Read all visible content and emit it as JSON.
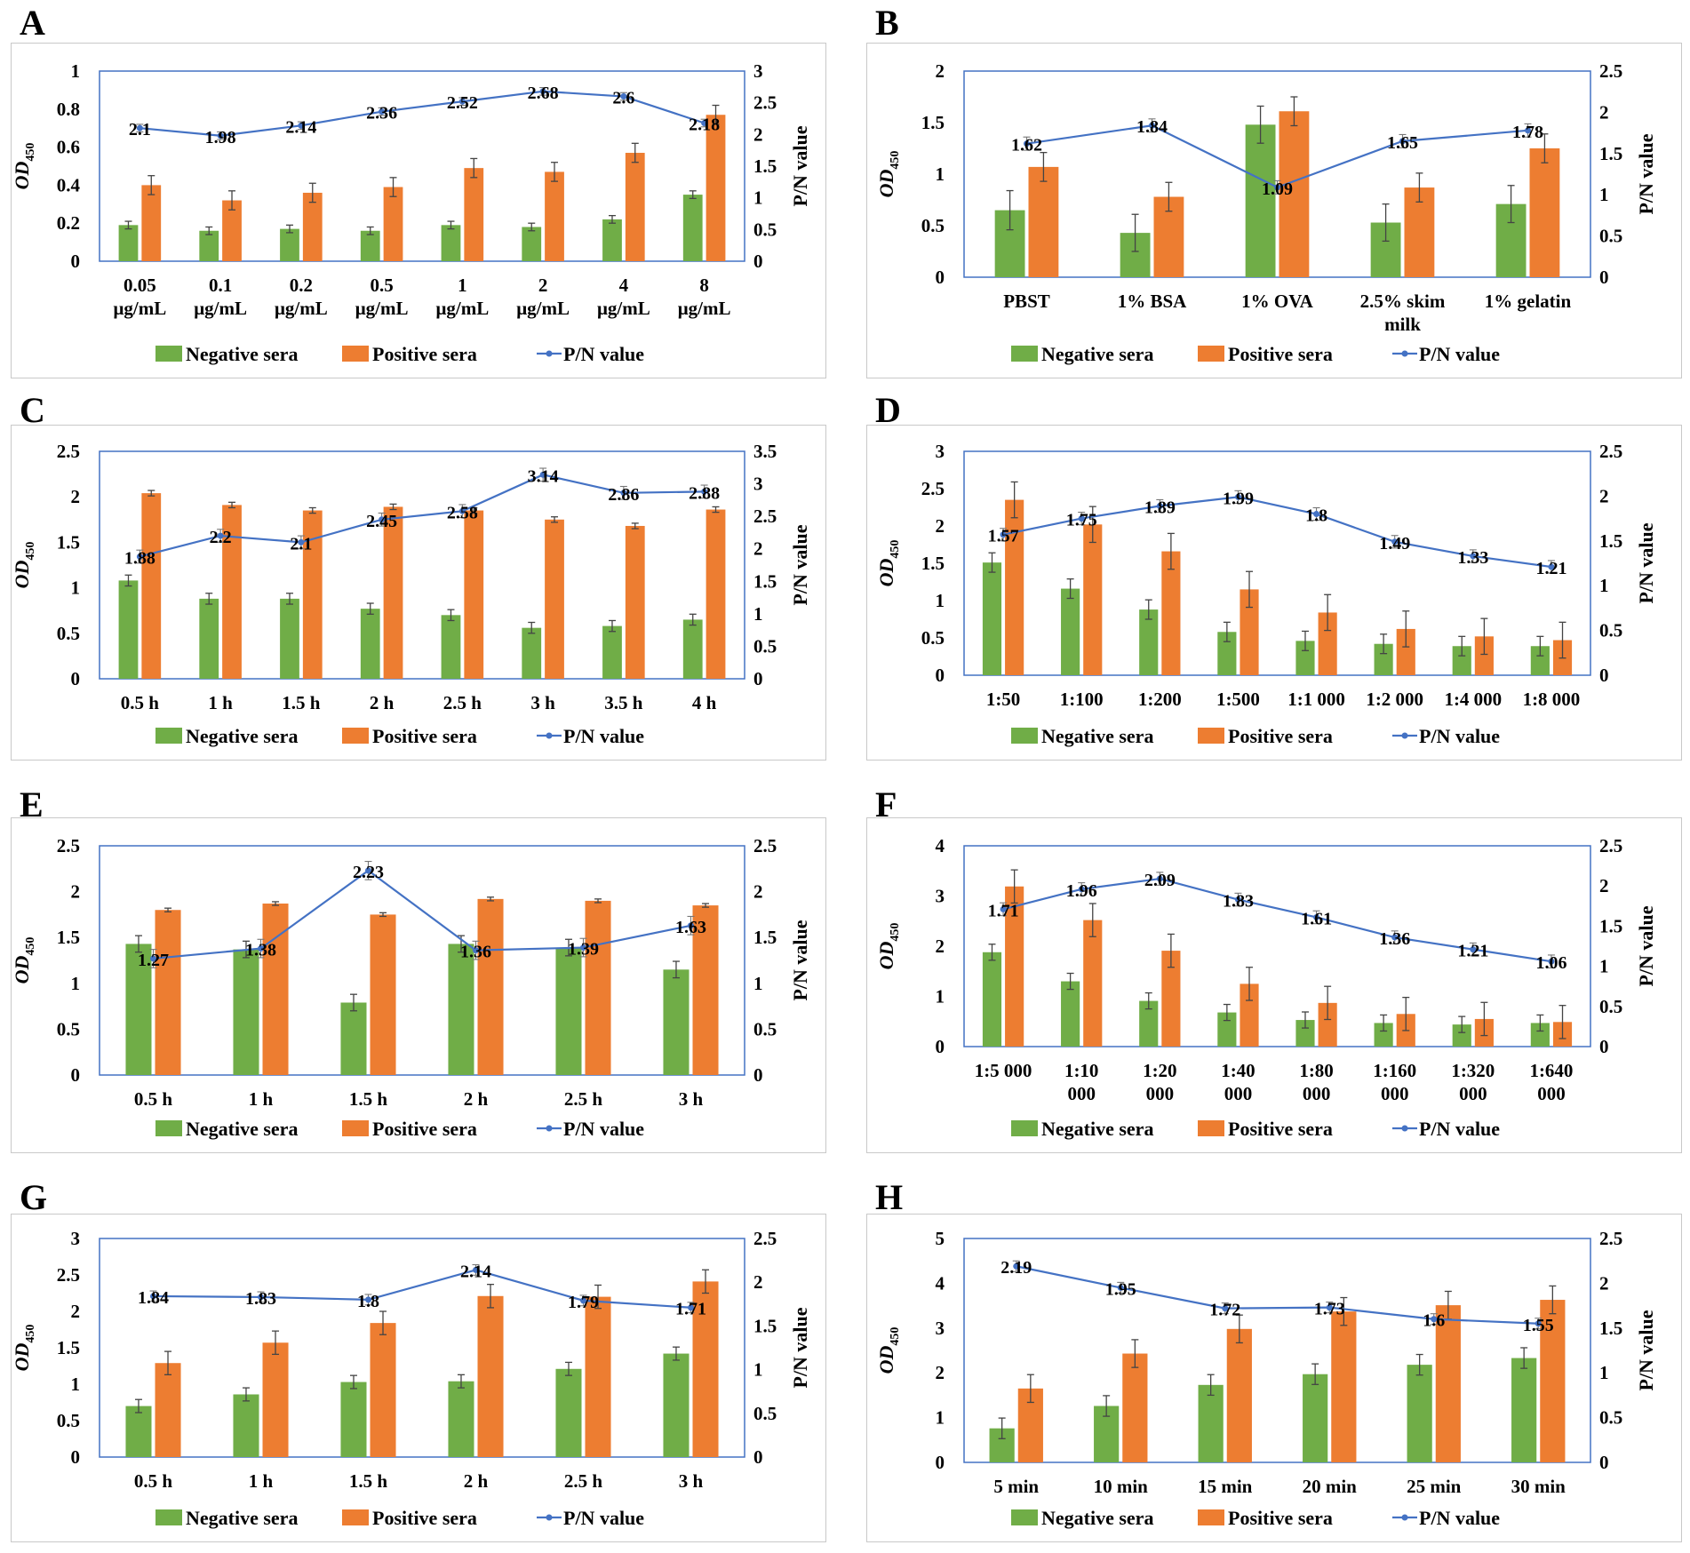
{
  "legend": {
    "negative": "Negative sera",
    "positive": "Positive sera",
    "pn": "P/N value"
  },
  "axis_labels": {
    "left_main": "OD",
    "left_sub": "450",
    "right": "P/N value"
  },
  "colors": {
    "negative": "#70ad47",
    "positive": "#ed7d31",
    "pn": "#4472c4",
    "frame": "#c9c9c9",
    "plot_border": "#4472c4",
    "error": "#444444"
  },
  "chart_data": [
    {
      "letter": "A",
      "type": "bar+line",
      "ylim": [
        0,
        1
      ],
      "yticks": [
        "0",
        "0.2",
        "0.4",
        "0.6",
        "0.8",
        "1"
      ],
      "ytick_values": [
        0,
        0.2,
        0.4,
        0.6,
        0.8,
        1
      ],
      "y2lim": [
        0,
        3
      ],
      "y2ticks": [
        "0",
        "0.5",
        "1",
        "1.5",
        "2",
        "2.5",
        "3"
      ],
      "y2tick_values": [
        0,
        0.5,
        1,
        1.5,
        2,
        2.5,
        3
      ],
      "categories": [
        [
          "0.05",
          "μg/mL"
        ],
        [
          "0.1",
          "μg/mL"
        ],
        [
          "0.2",
          "μg/mL"
        ],
        [
          "0.5",
          "μg/mL"
        ],
        [
          "1",
          "μg/mL"
        ],
        [
          "2",
          "μg/mL"
        ],
        [
          "4",
          "μg/mL"
        ],
        [
          "8",
          "μg/mL"
        ]
      ],
      "negative": [
        0.19,
        0.16,
        0.17,
        0.16,
        0.19,
        0.18,
        0.22,
        0.35
      ],
      "negative_err": [
        0.02,
        0.02,
        0.02,
        0.02,
        0.02,
        0.02,
        0.02,
        0.02
      ],
      "positive": [
        0.4,
        0.32,
        0.36,
        0.39,
        0.49,
        0.47,
        0.57,
        0.77
      ],
      "positive_err": [
        0.05,
        0.05,
        0.05,
        0.05,
        0.05,
        0.05,
        0.05,
        0.05
      ],
      "pn": [
        2.1,
        1.98,
        2.14,
        2.36,
        2.52,
        2.68,
        2.6,
        2.18
      ],
      "pn_labels": [
        "2.1",
        "1.98",
        "2.14",
        "2.36",
        "2.52",
        "2.68",
        "2.6",
        "2.18"
      ],
      "pn_err": [
        0.06,
        0.06,
        0.06,
        0.06,
        0.06,
        0.06,
        0.06,
        0.06
      ]
    },
    {
      "letter": "B",
      "type": "bar+line",
      "ylim": [
        0,
        2
      ],
      "yticks": [
        "0",
        "0.5",
        "1",
        "1.5",
        "2"
      ],
      "ytick_values": [
        0,
        0.5,
        1,
        1.5,
        2
      ],
      "y2lim": [
        0,
        2.5
      ],
      "y2ticks": [
        "0",
        "0.5",
        "1",
        "1.5",
        "2",
        "2.5"
      ],
      "y2tick_values": [
        0,
        0.5,
        1,
        1.5,
        2,
        2.5
      ],
      "categories": [
        [
          "PBST"
        ],
        [
          "1% BSA"
        ],
        [
          "1% OVA"
        ],
        [
          "2.5% skim",
          "milk"
        ],
        [
          "1% gelatin"
        ]
      ],
      "negative": [
        0.65,
        0.43,
        1.48,
        0.53,
        0.71
      ],
      "negative_err": [
        0.19,
        0.18,
        0.18,
        0.18,
        0.18
      ],
      "positive": [
        1.07,
        0.78,
        1.61,
        0.87,
        1.25
      ],
      "positive_err": [
        0.14,
        0.14,
        0.14,
        0.14,
        0.14
      ],
      "pn": [
        1.62,
        1.84,
        1.09,
        1.65,
        1.78
      ],
      "pn_labels": [
        "1.62",
        "1.84",
        "1.09",
        "1.65",
        "1.78"
      ],
      "pn_err": [
        0.08,
        0.08,
        0.08,
        0.08,
        0.08
      ]
    },
    {
      "letter": "C",
      "type": "bar+line",
      "ylim": [
        0,
        2.5
      ],
      "yticks": [
        "0",
        "0.5",
        "1",
        "1.5",
        "2",
        "2.5"
      ],
      "ytick_values": [
        0,
        0.5,
        1,
        1.5,
        2,
        2.5
      ],
      "y2lim": [
        0,
        3.5
      ],
      "y2ticks": [
        "0",
        "0.5",
        "1",
        "1.5",
        "2",
        "2.5",
        "3",
        "3.5"
      ],
      "y2tick_values": [
        0,
        0.5,
        1,
        1.5,
        2,
        2.5,
        3,
        3.5
      ],
      "categories": [
        [
          "0.5 h"
        ],
        [
          "1 h"
        ],
        [
          "1.5 h"
        ],
        [
          "2 h"
        ],
        [
          "2.5 h"
        ],
        [
          "3 h"
        ],
        [
          "3.5 h"
        ],
        [
          "4 h"
        ]
      ],
      "negative": [
        1.08,
        0.88,
        0.88,
        0.77,
        0.7,
        0.56,
        0.58,
        0.65
      ],
      "negative_err": [
        0.06,
        0.06,
        0.06,
        0.06,
        0.06,
        0.06,
        0.06,
        0.06
      ],
      "positive": [
        2.04,
        1.91,
        1.85,
        1.89,
        1.85,
        1.75,
        1.68,
        1.86
      ],
      "positive_err": [
        0.03,
        0.03,
        0.03,
        0.03,
        0.03,
        0.03,
        0.03,
        0.03
      ],
      "pn": [
        1.88,
        2.2,
        2.1,
        2.45,
        2.58,
        3.14,
        2.86,
        2.88
      ],
      "pn_labels": [
        "1.88",
        "2.2",
        "2.1",
        "2.45",
        "2.58",
        "3.14",
        "2.86",
        "2.88"
      ],
      "pn_err": [
        0.1,
        0.1,
        0.1,
        0.1,
        0.1,
        0.1,
        0.1,
        0.1
      ]
    },
    {
      "letter": "D",
      "type": "bar+line",
      "ylim": [
        0,
        3
      ],
      "yticks": [
        "0",
        "0.5",
        "1",
        "1.5",
        "2",
        "2.5",
        "3"
      ],
      "ytick_values": [
        0,
        0.5,
        1,
        1.5,
        2,
        2.5,
        3
      ],
      "y2lim": [
        0,
        2.5
      ],
      "y2ticks": [
        "0",
        "0.5",
        "1",
        "1.5",
        "2",
        "2.5"
      ],
      "y2tick_values": [
        0,
        0.5,
        1,
        1.5,
        2,
        2.5
      ],
      "categories": [
        [
          "1:50"
        ],
        [
          "1:100"
        ],
        [
          "1:200"
        ],
        [
          "1:500"
        ],
        [
          "1:1 000"
        ],
        [
          "1:2 000"
        ],
        [
          "1:4 000"
        ],
        [
          "1:8 000"
        ]
      ],
      "negative": [
        1.51,
        1.16,
        0.88,
        0.58,
        0.46,
        0.42,
        0.39,
        0.39
      ],
      "negative_err": [
        0.13,
        0.13,
        0.13,
        0.13,
        0.13,
        0.13,
        0.13,
        0.13
      ],
      "positive": [
        2.35,
        2.02,
        1.66,
        1.15,
        0.84,
        0.62,
        0.52,
        0.47
      ],
      "positive_err": [
        0.24,
        0.24,
        0.24,
        0.24,
        0.24,
        0.24,
        0.24,
        0.24
      ],
      "pn": [
        1.57,
        1.75,
        1.89,
        1.99,
        1.8,
        1.49,
        1.33,
        1.21
      ],
      "pn_labels": [
        "1.57",
        "1.75",
        "1.89",
        "1.99",
        "1.8",
        "1.49",
        "1.33",
        "1.21"
      ],
      "pn_err": [
        0.07,
        0.07,
        0.07,
        0.07,
        0.07,
        0.07,
        0.07,
        0.07
      ]
    },
    {
      "letter": "E",
      "type": "bar+line",
      "ylim": [
        0,
        2.5
      ],
      "yticks": [
        "0",
        "0.5",
        "1",
        "1.5",
        "2",
        "2.5"
      ],
      "ytick_values": [
        0,
        0.5,
        1,
        1.5,
        2,
        2.5
      ],
      "y2lim": [
        0,
        2.5
      ],
      "y2ticks": [
        "0",
        "0.5",
        "1",
        "1.5",
        "2",
        "2.5"
      ],
      "y2tick_values": [
        0,
        0.5,
        1,
        1.5,
        2,
        2.5
      ],
      "categories": [
        [
          "0.5 h"
        ],
        [
          "1 h"
        ],
        [
          "1.5 h"
        ],
        [
          "2 h"
        ],
        [
          "2.5 h"
        ],
        [
          "3 h"
        ]
      ],
      "negative": [
        1.43,
        1.37,
        0.79,
        1.43,
        1.39,
        1.15
      ],
      "negative_err": [
        0.09,
        0.09,
        0.09,
        0.09,
        0.09,
        0.09
      ],
      "positive": [
        1.8,
        1.87,
        1.75,
        1.92,
        1.9,
        1.85
      ],
      "positive_err": [
        0.02,
        0.02,
        0.02,
        0.02,
        0.02,
        0.02
      ],
      "pn": [
        1.27,
        1.38,
        2.23,
        1.36,
        1.39,
        1.63
      ],
      "pn_labels": [
        "1.27",
        "1.38",
        "2.23",
        "1.36",
        "1.39",
        "1.63"
      ],
      "pn_err": [
        0.1,
        0.1,
        0.1,
        0.1,
        0.1,
        0.1
      ]
    },
    {
      "letter": "F",
      "type": "bar+line",
      "ylim": [
        0,
        4
      ],
      "yticks": [
        "0",
        "1",
        "2",
        "3",
        "4"
      ],
      "ytick_values": [
        0,
        1,
        2,
        3,
        4
      ],
      "y2lim": [
        0,
        2.5
      ],
      "y2ticks": [
        "0",
        "0.5",
        "1",
        "1.5",
        "2",
        "2.5"
      ],
      "y2tick_values": [
        0,
        0.5,
        1,
        1.5,
        2,
        2.5
      ],
      "categories": [
        [
          "1:5 000"
        ],
        [
          "1:10",
          "000"
        ],
        [
          "1:20",
          "000"
        ],
        [
          "1:40",
          "000"
        ],
        [
          "1:80",
          "000"
        ],
        [
          "1:160",
          "000"
        ],
        [
          "1:320",
          "000"
        ],
        [
          "1:640",
          "000"
        ]
      ],
      "negative": [
        1.88,
        1.3,
        0.91,
        0.68,
        0.53,
        0.47,
        0.44,
        0.47
      ],
      "negative_err": [
        0.16,
        0.16,
        0.16,
        0.16,
        0.16,
        0.16,
        0.16,
        0.16
      ],
      "positive": [
        3.19,
        2.52,
        1.91,
        1.25,
        0.87,
        0.65,
        0.55,
        0.49
      ],
      "positive_err": [
        0.33,
        0.33,
        0.33,
        0.33,
        0.33,
        0.33,
        0.33,
        0.33
      ],
      "pn": [
        1.71,
        1.96,
        2.09,
        1.83,
        1.61,
        1.36,
        1.21,
        1.06
      ],
      "pn_labels": [
        "1.71",
        "1.96",
        "2.09",
        "1.83",
        "1.61",
        "1.36",
        "1.21",
        "1.06"
      ],
      "pn_err": [
        0.08,
        0.08,
        0.08,
        0.08,
        0.08,
        0.08,
        0.08,
        0.08
      ]
    },
    {
      "letter": "G",
      "type": "bar+line",
      "ylim": [
        0,
        3
      ],
      "yticks": [
        "0",
        "0.5",
        "1",
        "1.5",
        "2",
        "2.5",
        "3"
      ],
      "ytick_values": [
        0,
        0.5,
        1,
        1.5,
        2,
        2.5,
        3
      ],
      "y2lim": [
        0,
        2.5
      ],
      "y2ticks": [
        "0",
        "0.5",
        "1",
        "1.5",
        "2",
        "2.5"
      ],
      "y2tick_values": [
        0,
        0.5,
        1,
        1.5,
        2,
        2.5
      ],
      "categories": [
        [
          "0.5 h"
        ],
        [
          "1 h"
        ],
        [
          "1.5 h"
        ],
        [
          "2 h"
        ],
        [
          "2.5 h"
        ],
        [
          "3 h"
        ]
      ],
      "negative": [
        0.7,
        0.86,
        1.03,
        1.04,
        1.21,
        1.42
      ],
      "negative_err": [
        0.09,
        0.09,
        0.09,
        0.09,
        0.09,
        0.09
      ],
      "positive": [
        1.29,
        1.57,
        1.84,
        2.21,
        2.2,
        2.41
      ],
      "positive_err": [
        0.16,
        0.16,
        0.16,
        0.16,
        0.16,
        0.16
      ],
      "pn": [
        1.84,
        1.83,
        1.8,
        2.14,
        1.79,
        1.71
      ],
      "pn_labels": [
        "1.84",
        "1.83",
        "1.8",
        "2.14",
        "1.79",
        "1.71"
      ],
      "pn_err": [
        0.06,
        0.06,
        0.06,
        0.06,
        0.06,
        0.06
      ]
    },
    {
      "letter": "H",
      "type": "bar+line",
      "ylim": [
        0,
        5
      ],
      "yticks": [
        "0",
        "1",
        "2",
        "3",
        "4",
        "5"
      ],
      "ytick_values": [
        0,
        1,
        2,
        3,
        4,
        5
      ],
      "y2lim": [
        0,
        2.5
      ],
      "y2ticks": [
        "0",
        "0.5",
        "1",
        "1.5",
        "2",
        "2.5"
      ],
      "y2tick_values": [
        0,
        0.5,
        1,
        1.5,
        2,
        2.5
      ],
      "categories": [
        [
          "5 min"
        ],
        [
          "10 min"
        ],
        [
          "15 min"
        ],
        [
          "20 min"
        ],
        [
          "25 min"
        ],
        [
          "30 min"
        ]
      ],
      "negative": [
        0.76,
        1.26,
        1.73,
        1.97,
        2.18,
        2.33
      ],
      "negative_err": [
        0.23,
        0.23,
        0.23,
        0.23,
        0.23,
        0.23
      ],
      "positive": [
        1.65,
        2.43,
        2.98,
        3.37,
        3.51,
        3.63
      ],
      "positive_err": [
        0.31,
        0.31,
        0.31,
        0.31,
        0.31,
        0.31
      ],
      "pn": [
        2.19,
        1.95,
        1.72,
        1.73,
        1.6,
        1.55
      ],
      "pn_labels": [
        "2.19",
        "1.95",
        "1.72",
        "1.73",
        "1.6",
        "1.55"
      ],
      "pn_err": [
        0.06,
        0.06,
        0.06,
        0.06,
        0.06,
        0.06
      ]
    }
  ]
}
